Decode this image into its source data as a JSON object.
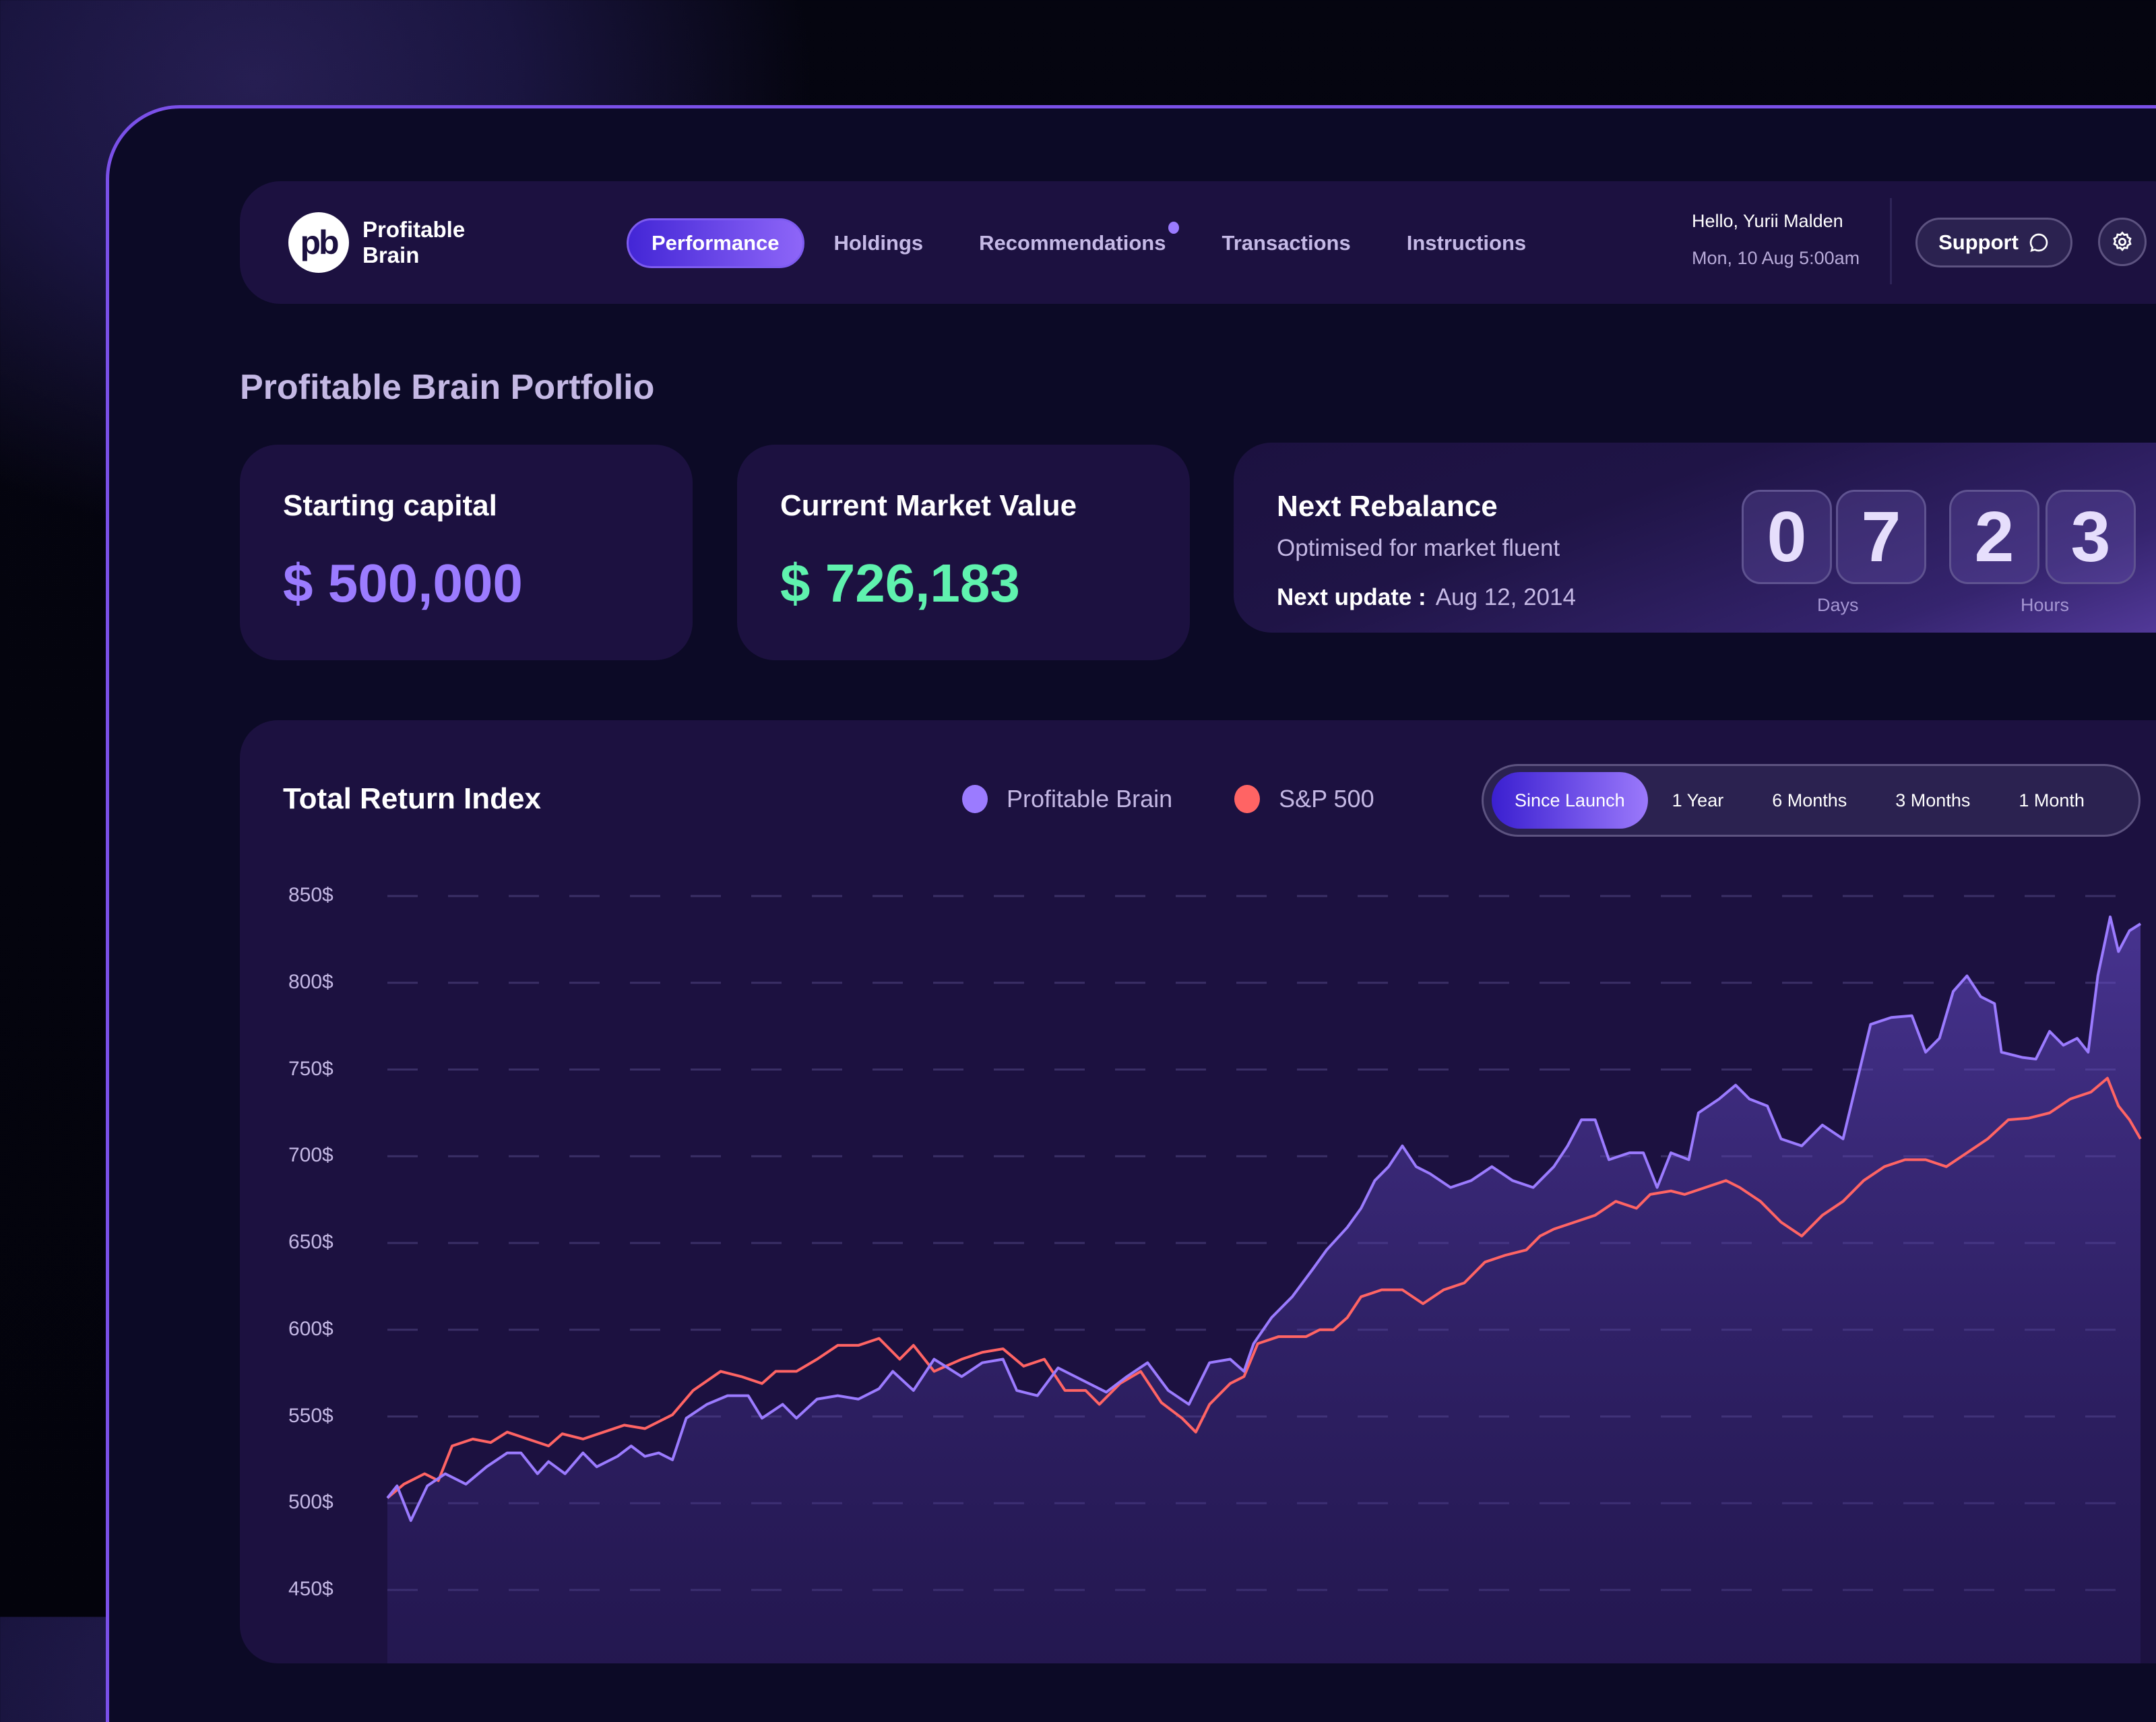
{
  "header": {
    "brand_line1": "Profitable",
    "brand_line2": "Brain",
    "logo_glyph": "pb",
    "nav": [
      {
        "label": "Performance",
        "active": true
      },
      {
        "label": "Holdings"
      },
      {
        "label": "Recommendations",
        "badge_dot": true
      },
      {
        "label": "Transactions"
      },
      {
        "label": "Instructions"
      }
    ],
    "greeting": "Hello, Yurii Malden",
    "datetime": "Mon, 10 Aug 5:00am",
    "support_label": "Support",
    "support_icon": "chat-bubble-icon",
    "settings_icon": "gear-icon"
  },
  "page_title": "Profitable Brain Portfolio",
  "cards": {
    "starting": {
      "label": "Starting capital",
      "value": "$ 500,000",
      "color": "#9b7bff"
    },
    "current": {
      "label": "Current Market Value",
      "value": "$ 726,183",
      "color": "#5ff2ae"
    },
    "rebalance": {
      "title": "Next Rebalance",
      "subtitle": "Optimised for market fluent",
      "update_label": "Next update :",
      "update_value": "Aug 12, 2014",
      "digits": [
        "0",
        "7",
        "2",
        "3"
      ],
      "days_label": "Days",
      "hours_label": "Hours"
    }
  },
  "chart_card": {
    "title": "Total Return Index",
    "legend": [
      {
        "name": "Profitable Brain",
        "color": "#9b7bff"
      },
      {
        "name": "S&P 500",
        "color": "#ff6464"
      }
    ],
    "ranges": [
      {
        "label": "Since Launch",
        "active": true
      },
      {
        "label": "1 Year"
      },
      {
        "label": "6 Months"
      },
      {
        "label": "3 Months"
      },
      {
        "label": "1 Month"
      }
    ]
  },
  "chart_data": {
    "type": "area",
    "title": "Total Return Index",
    "xlabel": "",
    "ylabel": "",
    "ylim": [
      450,
      850
    ],
    "yticks": [
      "850$",
      "800$",
      "750$",
      "700$",
      "650$",
      "600$",
      "550$",
      "500$",
      "450$"
    ],
    "ytick_values": [
      850,
      800,
      750,
      700,
      650,
      600,
      550,
      500,
      450
    ],
    "grid": "horizontal dashed",
    "legend_position": "top",
    "x_range": [
      283,
      1556
    ],
    "series": [
      {
        "name": "Profitable Brain",
        "color": "#9b7bff",
        "points": [
          [
            283,
            503
          ],
          [
            290,
            510
          ],
          [
            300,
            490
          ],
          [
            312,
            510
          ],
          [
            325,
            517
          ],
          [
            340,
            511
          ],
          [
            355,
            521
          ],
          [
            370,
            529
          ],
          [
            380,
            529
          ],
          [
            392,
            517
          ],
          [
            400,
            524
          ],
          [
            412,
            517
          ],
          [
            425,
            529
          ],
          [
            435,
            521
          ],
          [
            450,
            527
          ],
          [
            460,
            533
          ],
          [
            470,
            527
          ],
          [
            480,
            529
          ],
          [
            490,
            525
          ],
          [
            500,
            549
          ],
          [
            515,
            557
          ],
          [
            530,
            562
          ],
          [
            545,
            562
          ],
          [
            555,
            549
          ],
          [
            570,
            557
          ],
          [
            580,
            549
          ],
          [
            595,
            560
          ],
          [
            610,
            562
          ],
          [
            625,
            560
          ],
          [
            640,
            566
          ],
          [
            650,
            576
          ],
          [
            665,
            565
          ],
          [
            680,
            583
          ],
          [
            700,
            573
          ],
          [
            715,
            581
          ],
          [
            730,
            583
          ],
          [
            740,
            565
          ],
          [
            755,
            562
          ],
          [
            770,
            578
          ],
          [
            790,
            570
          ],
          [
            805,
            564
          ],
          [
            820,
            573
          ],
          [
            835,
            581
          ],
          [
            850,
            565
          ],
          [
            865,
            557
          ],
          [
            880,
            581
          ],
          [
            895,
            583
          ],
          [
            905,
            576
          ],
          [
            912,
            592
          ],
          [
            925,
            607
          ],
          [
            940,
            619
          ],
          [
            955,
            635
          ],
          [
            965,
            646
          ],
          [
            980,
            659
          ],
          [
            990,
            670
          ],
          [
            1000,
            686
          ],
          [
            1010,
            694
          ],
          [
            1020,
            706
          ],
          [
            1030,
            694
          ],
          [
            1040,
            690
          ],
          [
            1055,
            682
          ],
          [
            1070,
            686
          ],
          [
            1085,
            694
          ],
          [
            1100,
            686
          ],
          [
            1115,
            682
          ],
          [
            1130,
            694
          ],
          [
            1140,
            706
          ],
          [
            1150,
            721
          ],
          [
            1160,
            721
          ],
          [
            1170,
            698
          ],
          [
            1185,
            702
          ],
          [
            1195,
            702
          ],
          [
            1205,
            682
          ],
          [
            1215,
            702
          ],
          [
            1228,
            698
          ],
          [
            1235,
            725
          ],
          [
            1250,
            733
          ],
          [
            1262,
            741
          ],
          [
            1272,
            733
          ],
          [
            1285,
            729
          ],
          [
            1295,
            710
          ],
          [
            1310,
            706
          ],
          [
            1325,
            718
          ],
          [
            1340,
            710
          ],
          [
            1360,
            776
          ],
          [
            1375,
            780
          ],
          [
            1390,
            781
          ],
          [
            1400,
            760
          ],
          [
            1410,
            768
          ],
          [
            1420,
            795
          ],
          [
            1430,
            804
          ],
          [
            1440,
            792
          ],
          [
            1450,
            788
          ],
          [
            1455,
            760
          ],
          [
            1470,
            757
          ],
          [
            1480,
            756
          ],
          [
            1490,
            772
          ],
          [
            1500,
            764
          ],
          [
            1510,
            768
          ],
          [
            1518,
            760
          ],
          [
            1525,
            804
          ],
          [
            1534,
            838
          ],
          [
            1540,
            818
          ],
          [
            1548,
            830
          ],
          [
            1556,
            834
          ]
        ]
      },
      {
        "name": "S&P 500",
        "color": "#ff6464",
        "points": [
          [
            283,
            503
          ],
          [
            295,
            511
          ],
          [
            310,
            517
          ],
          [
            320,
            513
          ],
          [
            330,
            533
          ],
          [
            345,
            537
          ],
          [
            358,
            535
          ],
          [
            370,
            541
          ],
          [
            385,
            537
          ],
          [
            400,
            533
          ],
          [
            410,
            540
          ],
          [
            425,
            537
          ],
          [
            440,
            541
          ],
          [
            455,
            545
          ],
          [
            470,
            543
          ],
          [
            490,
            551
          ],
          [
            505,
            565
          ],
          [
            525,
            576
          ],
          [
            540,
            573
          ],
          [
            555,
            569
          ],
          [
            565,
            576
          ],
          [
            580,
            576
          ],
          [
            595,
            583
          ],
          [
            610,
            591
          ],
          [
            625,
            591
          ],
          [
            640,
            595
          ],
          [
            655,
            583
          ],
          [
            665,
            591
          ],
          [
            680,
            576
          ],
          [
            700,
            583
          ],
          [
            715,
            587
          ],
          [
            730,
            589
          ],
          [
            745,
            579
          ],
          [
            760,
            583
          ],
          [
            775,
            565
          ],
          [
            790,
            565
          ],
          [
            800,
            557
          ],
          [
            815,
            569
          ],
          [
            830,
            576
          ],
          [
            845,
            558
          ],
          [
            860,
            549
          ],
          [
            870,
            541
          ],
          [
            880,
            557
          ],
          [
            895,
            569
          ],
          [
            905,
            573
          ],
          [
            915,
            592
          ],
          [
            930,
            596
          ],
          [
            950,
            596
          ],
          [
            960,
            600
          ],
          [
            970,
            600
          ],
          [
            980,
            607
          ],
          [
            990,
            619
          ],
          [
            1005,
            623
          ],
          [
            1020,
            623
          ],
          [
            1035,
            615
          ],
          [
            1050,
            623
          ],
          [
            1065,
            627
          ],
          [
            1080,
            639
          ],
          [
            1095,
            643
          ],
          [
            1110,
            646
          ],
          [
            1120,
            654
          ],
          [
            1130,
            658
          ],
          [
            1145,
            662
          ],
          [
            1160,
            666
          ],
          [
            1175,
            674
          ],
          [
            1190,
            670
          ],
          [
            1200,
            678
          ],
          [
            1215,
            680
          ],
          [
            1225,
            678
          ],
          [
            1240,
            682
          ],
          [
            1255,
            686
          ],
          [
            1265,
            682
          ],
          [
            1280,
            674
          ],
          [
            1295,
            662
          ],
          [
            1310,
            654
          ],
          [
            1325,
            666
          ],
          [
            1340,
            674
          ],
          [
            1355,
            686
          ],
          [
            1370,
            694
          ],
          [
            1385,
            698
          ],
          [
            1400,
            698
          ],
          [
            1415,
            694
          ],
          [
            1430,
            702
          ],
          [
            1445,
            710
          ],
          [
            1460,
            721
          ],
          [
            1475,
            722
          ],
          [
            1490,
            725
          ],
          [
            1505,
            733
          ],
          [
            1520,
            737
          ],
          [
            1532,
            745
          ],
          [
            1540,
            729
          ],
          [
            1548,
            721
          ],
          [
            1556,
            710
          ]
        ]
      }
    ]
  }
}
